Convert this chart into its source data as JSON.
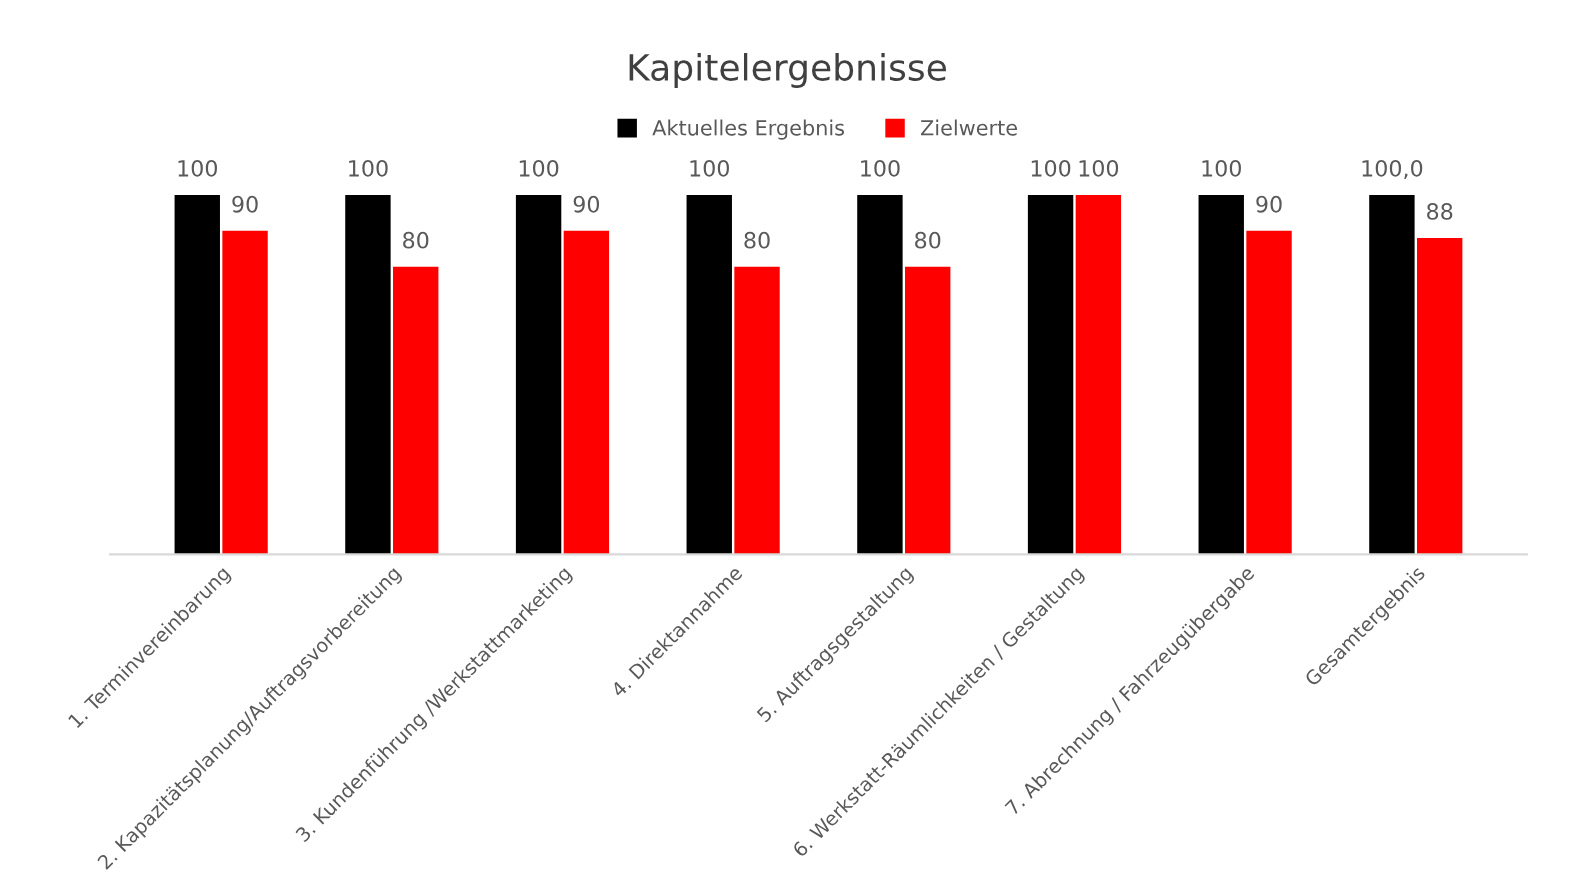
{
  "chart_data": {
    "type": "bar",
    "title": "Kapitelergebnisse",
    "categories": [
      "1. Terminvereinbarung",
      "2. Kapazitätsplanung/Auftragsvorbereitung",
      "3. Kundenführung /Werkstattmarketing",
      "4. Direktannahme",
      "5. Auftragsgestaltung",
      "6. Werkstatt-Räumlichkeiten / Gestaltung",
      "7. Abrechnung / Fahrzeugübergabe",
      "Gesamtergebnis"
    ],
    "series": [
      {
        "name": "Aktuelles Ergebnis",
        "color": "#000000",
        "values": [
          100,
          100,
          100,
          100,
          100,
          100,
          100,
          100
        ],
        "value_labels": [
          "100",
          "100",
          "100",
          "100",
          "100",
          "100",
          "100",
          "100,0"
        ]
      },
      {
        "name": "Zielwerte",
        "color": "#ff0000",
        "values": [
          90,
          80,
          90,
          80,
          80,
          100,
          90,
          88
        ],
        "value_labels": [
          "90",
          "80",
          "90",
          "80",
          "80",
          "100",
          "90",
          "88"
        ]
      }
    ],
    "legend": "top"
  }
}
